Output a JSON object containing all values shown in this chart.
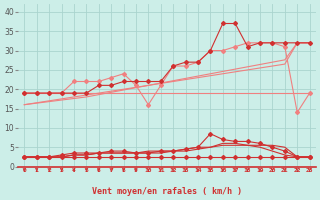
{
  "x": [
    0,
    1,
    2,
    3,
    4,
    5,
    6,
    7,
    8,
    9,
    10,
    11,
    12,
    13,
    14,
    15,
    16,
    17,
    18,
    19,
    20,
    21,
    22,
    23
  ],
  "upper_line1_flat": [
    19,
    19,
    19,
    19,
    19,
    19,
    19,
    19,
    19,
    19,
    19,
    19,
    19,
    19,
    19,
    19,
    19,
    19,
    19,
    19,
    19,
    19,
    19,
    19
  ],
  "upper_linear1": [
    16,
    16.5,
    17,
    17.5,
    18,
    18.5,
    19,
    19.5,
    20,
    20.5,
    21,
    21.5,
    22,
    22.5,
    23,
    23.5,
    24,
    24.5,
    25,
    25.5,
    26,
    26.5,
    32,
    32
  ],
  "upper_linear2": [
    16,
    16.4,
    16.8,
    17.2,
    17.6,
    18,
    18.6,
    19.2,
    19.8,
    20.4,
    21,
    21.6,
    22.2,
    22.8,
    23.4,
    24,
    24.6,
    25.2,
    25.8,
    26.4,
    27,
    27.6,
    32,
    32
  ],
  "upper_jagged_light": [
    19,
    19,
    19,
    19,
    22,
    22,
    22,
    23,
    24,
    21,
    16,
    21,
    26,
    26,
    27,
    30,
    30,
    31,
    32,
    32,
    32,
    31,
    14,
    19
  ],
  "upper_jagged_dark": [
    19,
    19,
    19,
    19,
    19,
    19,
    21,
    21,
    22,
    22,
    22,
    22,
    26,
    27,
    27,
    30,
    37,
    37,
    31,
    32,
    32,
    32,
    32,
    32
  ],
  "bottom_flat": [
    2.5,
    2.5,
    2.5,
    2.5,
    2.5,
    2.5,
    2.5,
    2.5,
    2.5,
    2.5,
    2.5,
    2.5,
    2.5,
    2.5,
    2.5,
    2.5,
    2.5,
    2.5,
    2.5,
    2.5,
    2.5,
    2.5,
    2.5,
    2.5
  ],
  "bottom_dark1": [
    2.5,
    2.5,
    2.5,
    2.5,
    3,
    3,
    3.5,
    3.5,
    3.5,
    3.5,
    3.5,
    3.5,
    4,
    4,
    4.5,
    5,
    6,
    6,
    5.5,
    5,
    4,
    3,
    2.5,
    2.5
  ],
  "bottom_dark2": [
    2.5,
    2.5,
    2.5,
    3,
    3.5,
    3.5,
    3.5,
    4,
    4,
    3.5,
    3.5,
    4,
    4,
    4.5,
    5,
    8.5,
    7,
    6.5,
    6.5,
    6,
    5,
    4,
    2.5,
    2.5
  ],
  "bottom_dark3": [
    2.5,
    2.5,
    2.5,
    2.5,
    3,
    3,
    3.5,
    3.5,
    3.5,
    3.5,
    4,
    4,
    4,
    4.5,
    5,
    5,
    5.5,
    5.5,
    5.5,
    5.5,
    5.5,
    5,
    2.5,
    2.5
  ],
  "color_light": "#f08080",
  "color_dark": "#d03030",
  "bg_color": "#cceee8",
  "grid_color": "#aad4ce",
  "xlabel": "Vent moyen/en rafales ( km/h )",
  "ylim": [
    0,
    42
  ],
  "xlim": [
    -0.5,
    23.5
  ],
  "yticks": [
    0,
    5,
    10,
    15,
    20,
    25,
    30,
    35,
    40
  ]
}
